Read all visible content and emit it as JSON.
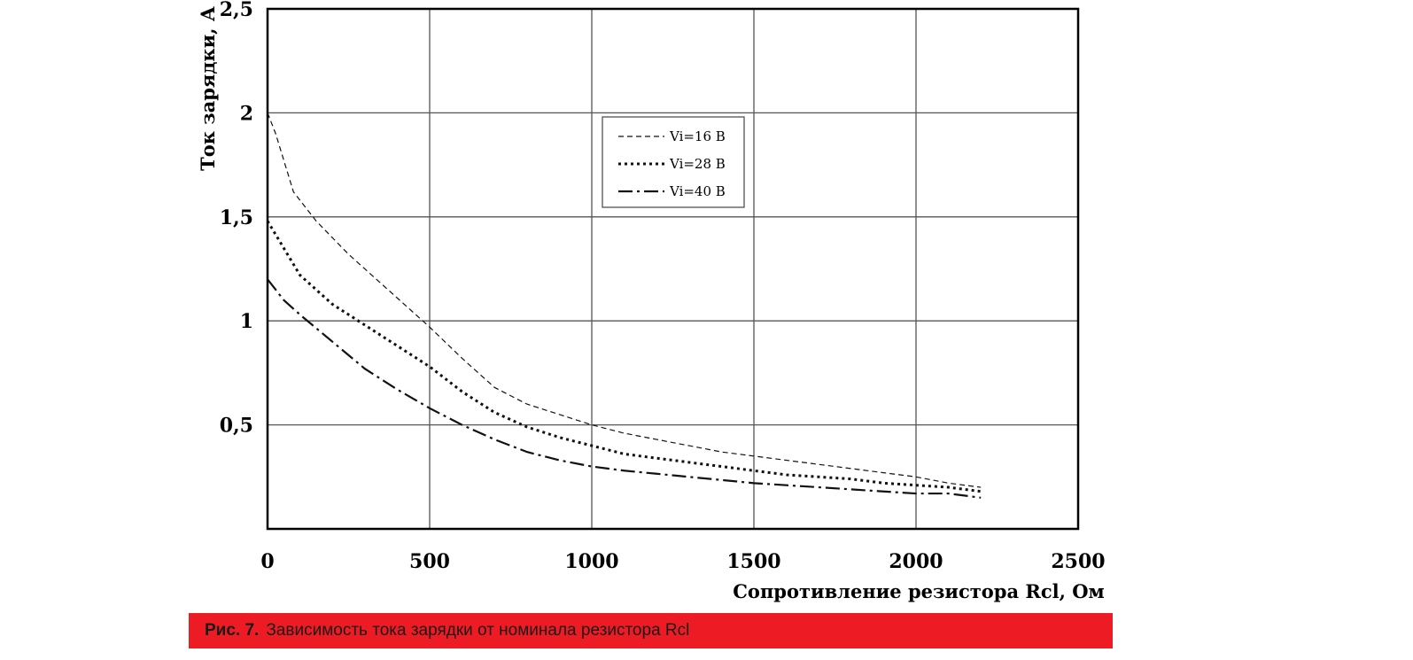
{
  "chart_data": {
    "type": "line",
    "xlabel": "Сопротивление резистора Rcl, Ом",
    "ylabel": "Ток зарядки, А",
    "xlim": [
      0,
      2500
    ],
    "ylim": [
      0,
      2.5
    ],
    "x_ticks": [
      0,
      500,
      1000,
      1500,
      2000,
      2500
    ],
    "y_ticks": [
      0.5,
      1,
      1.5,
      2,
      2.5
    ],
    "x_tick_labels": [
      "0",
      "500",
      "1000",
      "1500",
      "2000",
      "2500"
    ],
    "y_tick_labels": [
      "0,5",
      "1",
      "1,5",
      "2",
      "2,5"
    ],
    "grid": true,
    "legend_position": "top-center",
    "series": [
      {
        "name": "Vi=16 В",
        "style": "dashed-fine",
        "x": [
          0,
          25,
          80,
          150,
          250,
          350,
          450,
          500,
          600,
          700,
          800,
          900,
          1000,
          1100,
          1200,
          1300,
          1400,
          1500,
          1600,
          1700,
          1800,
          1900,
          2000,
          2100,
          2200
        ],
        "y": [
          2.0,
          1.9,
          1.62,
          1.48,
          1.32,
          1.18,
          1.04,
          0.97,
          0.82,
          0.68,
          0.6,
          0.55,
          0.5,
          0.46,
          0.43,
          0.4,
          0.37,
          0.35,
          0.33,
          0.31,
          0.29,
          0.27,
          0.25,
          0.22,
          0.2
        ]
      },
      {
        "name": "Vi=28 В",
        "style": "dotted",
        "x": [
          0,
          50,
          100,
          200,
          300,
          400,
          500,
          600,
          700,
          800,
          900,
          1000,
          1100,
          1200,
          1300,
          1400,
          1500,
          1600,
          1700,
          1800,
          1900,
          2000,
          2100,
          2200
        ],
        "y": [
          1.48,
          1.35,
          1.22,
          1.08,
          0.98,
          0.88,
          0.78,
          0.66,
          0.56,
          0.49,
          0.44,
          0.4,
          0.36,
          0.34,
          0.32,
          0.3,
          0.28,
          0.26,
          0.25,
          0.24,
          0.22,
          0.21,
          0.2,
          0.18
        ]
      },
      {
        "name": "Vi=40 В",
        "style": "dash-dot",
        "x": [
          0,
          50,
          100,
          200,
          300,
          400,
          500,
          600,
          700,
          800,
          900,
          1000,
          1100,
          1200,
          1300,
          1400,
          1500,
          1600,
          1700,
          1800,
          1900,
          2000,
          2100,
          2200
        ],
        "y": [
          1.2,
          1.1,
          1.03,
          0.9,
          0.77,
          0.67,
          0.58,
          0.5,
          0.43,
          0.37,
          0.33,
          0.3,
          0.28,
          0.265,
          0.25,
          0.235,
          0.22,
          0.21,
          0.2,
          0.19,
          0.18,
          0.17,
          0.17,
          0.15
        ]
      }
    ]
  },
  "caption": {
    "label": "Рис. 7.",
    "text": "Зависимость тока зарядки от номинала резистора Rcl"
  }
}
